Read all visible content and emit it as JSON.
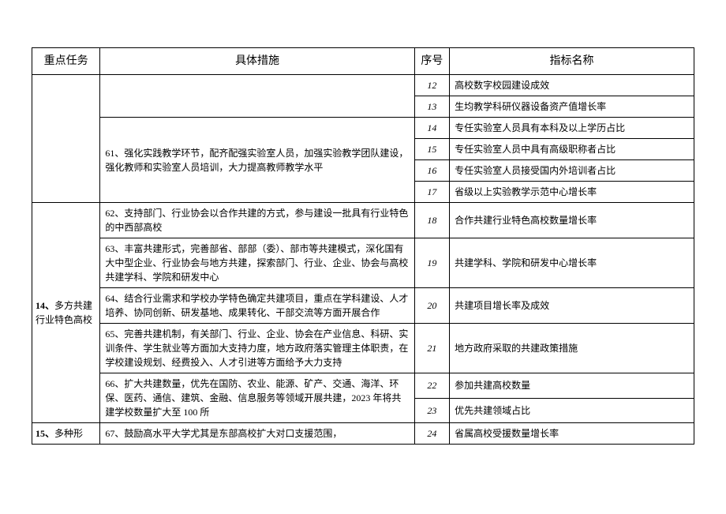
{
  "headers": {
    "task": "重点任务",
    "measure": "具体措施",
    "seq": "序号",
    "indicator": "指标名称"
  },
  "tasks": {
    "t14": {
      "num": "14、",
      "label": "多方共建行业特色高校"
    },
    "t15": {
      "num": "15、",
      "label": "多种形"
    }
  },
  "measures": {
    "m61": "61、强化实践教学环节，配齐配强实验室人员，加强实验教学团队建设，强化教师和实验室人员培训，大力提高教师教学水平",
    "m62": "62、支持部门、行业协会以合作共建的方式，参与建设一批具有行业特色的中西部高校",
    "m63": "63、丰富共建形式，完善部省、部部（委）、部市等共建模式，深化国有大中型企业、行业协会与地方共建，探索部门、行业、企业、协会与高校共建学科、学院和研发中心",
    "m64": "64、结合行业需求和学校办学特色确定共建项目，重点在学科建设、人才培养、协同创新、研发基地、成果转化、干部交流等方面开展合作",
    "m65": "65、完善共建机制，有关部门、行业、企业、协会在产业信息、科研、实训条件、学生就业等方面加大支持力度，地方政府落实管理主体职责，在学校建设规划、经费投入、人才引进等方面给予大力支持",
    "m66": "66、扩大共建数量，优先在国防、农业、能源、矿产、交通、海洋、环保、医药、通信、建筑、金融、信息服务等领域开展共建，2023 年将共建学校数量扩大至 100 所",
    "m67": "67、鼓励高水平大学尤其是东部高校扩大对口支援范围，"
  },
  "rows": [
    {
      "seq": "12",
      "indicator": "高校数字校园建设成效",
      "italic": true
    },
    {
      "seq": "13",
      "indicator": "生均教学科研仪器设备资产值增长率",
      "italic": false
    },
    {
      "seq": "14",
      "indicator": "专任实验室人员具有本科及以上学历占比",
      "italic": false
    },
    {
      "seq": "15",
      "indicator": "专任实验室人员中具有高级职称者占比",
      "italic": false
    },
    {
      "seq": "16",
      "indicator": "专任实验室人员接受国内外培训者占比",
      "italic": false
    },
    {
      "seq": "17",
      "indicator": "省级以上实验教学示范中心增长率",
      "italic": false
    },
    {
      "seq": "18",
      "indicator": "合作共建行业特色高校数量增长率",
      "italic": false
    },
    {
      "seq": "19",
      "indicator": "共建学科、学院和研发中心增长率",
      "italic": false
    },
    {
      "seq": "20",
      "indicator": "共建项目增长率及成效",
      "italic": true
    },
    {
      "seq": "21",
      "indicator": "地方政府采取的共建政策措施",
      "italic": true
    },
    {
      "seq": "22",
      "indicator": "参加共建高校数量",
      "italic": false
    },
    {
      "seq": "23",
      "indicator": "优先共建领域占比",
      "italic": false
    },
    {
      "seq": "24",
      "indicator": "省属高校受援数量增长率",
      "italic": true
    }
  ],
  "style": {
    "border_color": "#000000",
    "background_color": "#ffffff",
    "header_fontsize": 14,
    "cell_fontsize": 12
  }
}
